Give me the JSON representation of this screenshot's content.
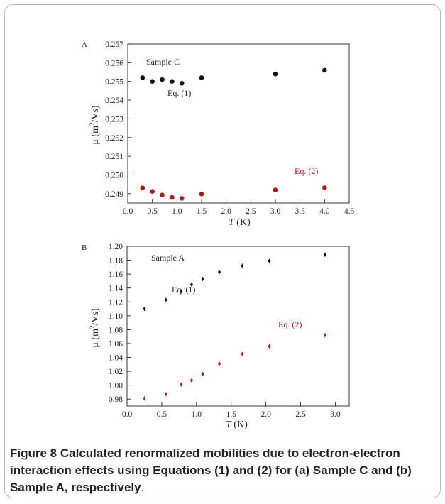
{
  "caption": {
    "label": "Figure 8",
    "text": "Calculated renormalized mobilities due to electron-electron interaction effects using Equations (1) and (2) for (a) Sample C and (b) Sample A, respectively",
    "end": "."
  },
  "chart_data": [
    {
      "type": "scatter",
      "panel_label": "A",
      "sample_label": "Sample C",
      "xlabel_italic": "T",
      "xlabel_unit": " (K)",
      "ylabel": "μ (m²/Vs)",
      "xlim": [
        0.0,
        4.5
      ],
      "ylim": [
        0.2485,
        0.257
      ],
      "xticks": [
        0.0,
        0.5,
        1.0,
        1.5,
        2.0,
        2.5,
        3.0,
        3.5,
        4.0,
        4.5
      ],
      "xtick_labels": [
        "0.0",
        "0.5",
        "1.0",
        "1.5",
        "2.0",
        "2.5",
        "3.0",
        "3.5",
        "4.0",
        "4.5"
      ],
      "yticks": [
        0.249,
        0.25,
        0.251,
        0.252,
        0.253,
        0.254,
        0.255,
        0.256,
        0.257
      ],
      "ytick_labels": [
        "0.249",
        "0.250",
        "0.251",
        "0.252",
        "0.253",
        "0.254",
        "0.255",
        "0.256",
        "0.257"
      ],
      "series": [
        {
          "name": "Eq. (1)",
          "color": "#111111",
          "x": [
            0.3,
            0.5,
            0.7,
            0.9,
            1.1,
            1.5,
            3.0,
            4.0
          ],
          "y": [
            0.2552,
            0.255,
            0.2551,
            0.255,
            0.2549,
            0.2552,
            0.2554,
            0.2556
          ]
        },
        {
          "name": "Eq. (2)",
          "color": "#b01818",
          "x": [
            0.3,
            0.5,
            0.7,
            0.9,
            1.1,
            1.5,
            3.0,
            4.0
          ],
          "y": [
            0.24931,
            0.24912,
            0.24893,
            0.2488,
            0.24875,
            0.24898,
            0.2492,
            0.24932
          ]
        }
      ],
      "annotations": [
        "Eq. (1)",
        "Eq. (2)"
      ]
    },
    {
      "type": "scatter",
      "panel_label": "B",
      "sample_label": "Sample A",
      "xlabel_italic": "T",
      "xlabel_unit": " (K)",
      "ylabel": "μ (m²/Vs)",
      "xlim": [
        0.0,
        3.2
      ],
      "ylim": [
        0.97,
        1.2
      ],
      "xticks": [
        0.0,
        0.5,
        1.0,
        1.5,
        2.0,
        2.5,
        3.0
      ],
      "xtick_labels": [
        "0.0",
        "0.5",
        "1.0",
        "1.5",
        "2.0",
        "2.5",
        "3.0"
      ],
      "yticks": [
        0.98,
        1.0,
        1.02,
        1.04,
        1.06,
        1.08,
        1.1,
        1.12,
        1.14,
        1.16,
        1.18,
        1.2
      ],
      "ytick_labels": [
        "0.98",
        "1.00",
        "1.02",
        "1.04",
        "1.06",
        "1.08",
        "1.10",
        "1.12",
        "1.14",
        "1.16",
        "1.18",
        "1.20"
      ],
      "series": [
        {
          "name": "Eq. (1)",
          "color": "#111111",
          "x": [
            0.25,
            0.56,
            0.78,
            0.93,
            1.09,
            1.33,
            1.66,
            2.05,
            2.85
          ],
          "y": [
            1.11,
            1.123,
            1.135,
            1.145,
            1.153,
            1.163,
            1.172,
            1.179,
            1.188
          ]
        },
        {
          "name": "Eq. (2)",
          "color": "#b01818",
          "x": [
            0.25,
            0.56,
            0.78,
            0.93,
            1.09,
            1.33,
            1.66,
            2.05,
            2.85
          ],
          "y": [
            0.981,
            0.987,
            1.001,
            1.007,
            1.016,
            1.031,
            1.045,
            1.056,
            1.072
          ]
        }
      ],
      "annotations": [
        "Eq. (1)",
        "Eq. (2)"
      ]
    }
  ]
}
